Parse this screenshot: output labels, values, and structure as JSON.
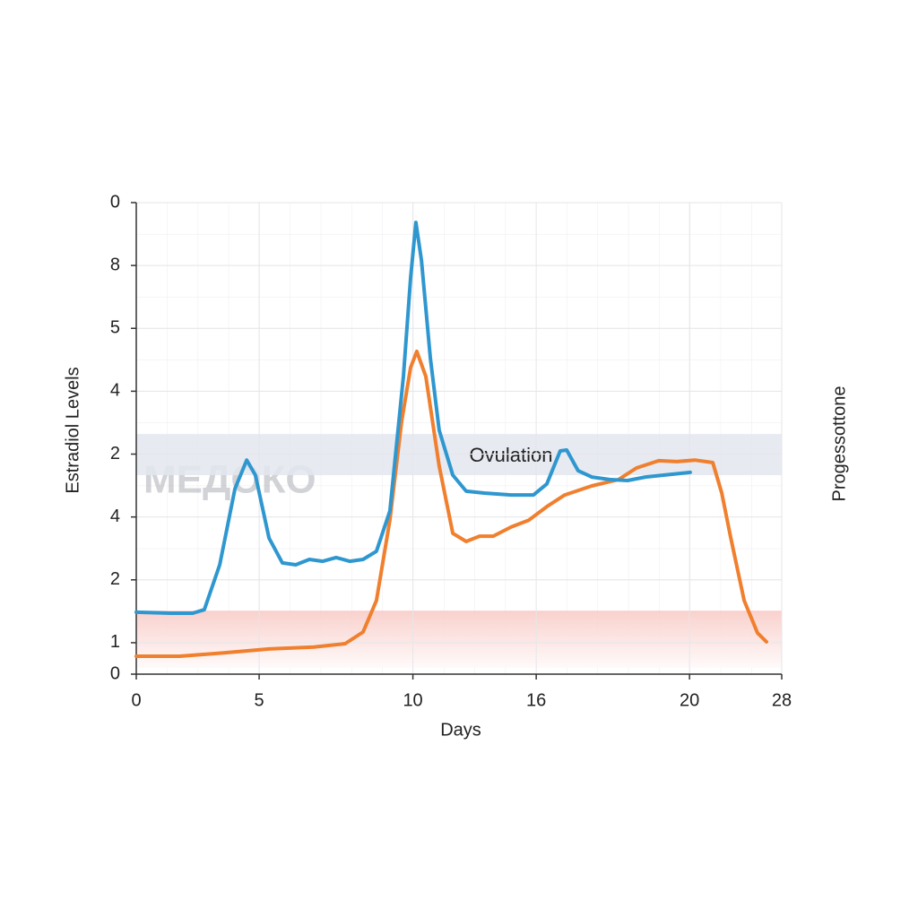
{
  "chart_data": {
    "type": "line",
    "xlabel": "Days",
    "ylabel": "Estradiol Levels",
    "y2label": "Progessottone",
    "watermark": "МЕДОКО",
    "xlim": [
      0,
      28
    ],
    "xticks": [
      0,
      {
        "value": 5.33,
        "label": "5"
      },
      {
        "value": 12,
        "label": "10"
      },
      {
        "value": 17.35,
        "label": "16"
      },
      {
        "value": 24,
        "label": "20"
      },
      28
    ],
    "ylim": [
      0,
      15
    ],
    "yticks": [
      0,
      1,
      {
        "value": 3,
        "label": "2"
      },
      {
        "value": 5,
        "label": "4"
      },
      {
        "value": 7,
        "label": "2"
      },
      {
        "value": 9,
        "label": "4"
      },
      {
        "value": 11,
        "label": "5"
      },
      {
        "value": 13,
        "label": "8"
      },
      {
        "value": 15,
        "label": "0"
      }
    ],
    "grid": true,
    "bands": [
      {
        "from": 6.33,
        "to": 7.64,
        "color": "#e3e6ef",
        "label": "Ovulation"
      },
      {
        "from": 0.2,
        "to": 2.02,
        "color": "#f8c9c4"
      }
    ],
    "series": [
      {
        "color": "#2f97cf",
        "x": [
          0,
          1.48,
          2.45,
          2.95,
          3.62,
          4.28,
          4.79,
          5.17,
          5.76,
          6.34,
          6.92,
          7.51,
          8.09,
          8.67,
          9.26,
          9.84,
          10.42,
          11.0,
          11.59,
          11.9,
          12.13,
          12.37,
          12.76,
          13.14,
          13.73,
          14.31,
          15.09,
          16.26,
          17.23,
          17.81,
          18.39,
          18.67,
          19.17,
          19.76,
          20.53,
          21.31,
          22.09,
          22.87,
          24.03
        ],
        "values": [
          1.97,
          1.94,
          1.94,
          2.05,
          3.48,
          5.9,
          6.81,
          6.33,
          4.33,
          3.54,
          3.48,
          3.65,
          3.59,
          3.71,
          3.59,
          3.65,
          3.91,
          5.19,
          9.47,
          12.6,
          14.37,
          13.17,
          10.04,
          7.76,
          6.33,
          5.82,
          5.76,
          5.7,
          5.7,
          6.05,
          7.1,
          7.13,
          6.47,
          6.27,
          6.19,
          6.16,
          6.27,
          6.33,
          6.42
        ]
      },
      {
        "color": "#f07f2e",
        "x": [
          0,
          1.87,
          3.81,
          5.76,
          7.7,
          9.06,
          9.84,
          10.42,
          11.0,
          11.51,
          11.9,
          12.17,
          12.56,
          13.14,
          13.73,
          14.31,
          14.89,
          15.48,
          16.26,
          17.03,
          17.81,
          18.59,
          19.76,
          20.92,
          21.7,
          22.67,
          23.45,
          24.23,
          25.01,
          25.4,
          25.79,
          26.37,
          26.95,
          27.34
        ],
        "values": [
          0.57,
          0.57,
          0.68,
          0.8,
          0.86,
          0.97,
          1.34,
          2.34,
          4.9,
          8.04,
          9.75,
          10.27,
          9.47,
          6.62,
          4.48,
          4.22,
          4.39,
          4.39,
          4.68,
          4.9,
          5.33,
          5.7,
          5.99,
          6.19,
          6.56,
          6.79,
          6.76,
          6.81,
          6.73,
          5.76,
          4.33,
          2.34,
          1.31,
          1.03
        ]
      }
    ]
  }
}
